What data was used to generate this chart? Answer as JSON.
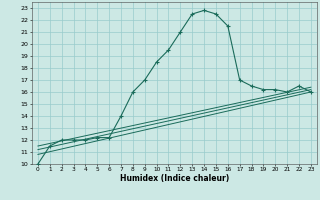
{
  "title": "",
  "xlabel": "Humidex (Indice chaleur)",
  "bg_color": "#cce8e4",
  "grid_color": "#99cccc",
  "line_color": "#1a6b5a",
  "xlim": [
    -0.5,
    23.5
  ],
  "ylim": [
    10,
    23.5
  ],
  "xticks": [
    0,
    1,
    2,
    3,
    4,
    5,
    6,
    7,
    8,
    9,
    10,
    11,
    12,
    13,
    14,
    15,
    16,
    17,
    18,
    19,
    20,
    21,
    22,
    23
  ],
  "yticks": [
    10,
    11,
    12,
    13,
    14,
    15,
    16,
    17,
    18,
    19,
    20,
    21,
    22,
    23
  ],
  "series": [
    [
      0,
      10
    ],
    [
      1,
      11.5
    ],
    [
      2,
      12
    ],
    [
      3,
      12
    ],
    [
      4,
      12
    ],
    [
      5,
      12.2
    ],
    [
      6,
      12.2
    ],
    [
      7,
      14
    ],
    [
      8,
      16
    ],
    [
      9,
      17
    ],
    [
      10,
      18.5
    ],
    [
      11,
      19.5
    ],
    [
      12,
      21
    ],
    [
      13,
      22.5
    ],
    [
      14,
      22.8
    ],
    [
      15,
      22.5
    ],
    [
      16,
      21.5
    ],
    [
      17,
      17
    ],
    [
      18,
      16.5
    ],
    [
      19,
      16.2
    ],
    [
      20,
      16.2
    ],
    [
      21,
      16
    ],
    [
      22,
      16.5
    ],
    [
      23,
      16
    ]
  ],
  "linear1": [
    [
      0,
      10.8
    ],
    [
      23,
      16.0
    ]
  ],
  "linear2": [
    [
      0,
      11.2
    ],
    [
      23,
      16.2
    ]
  ],
  "linear3": [
    [
      0,
      11.5
    ],
    [
      23,
      16.4
    ]
  ]
}
